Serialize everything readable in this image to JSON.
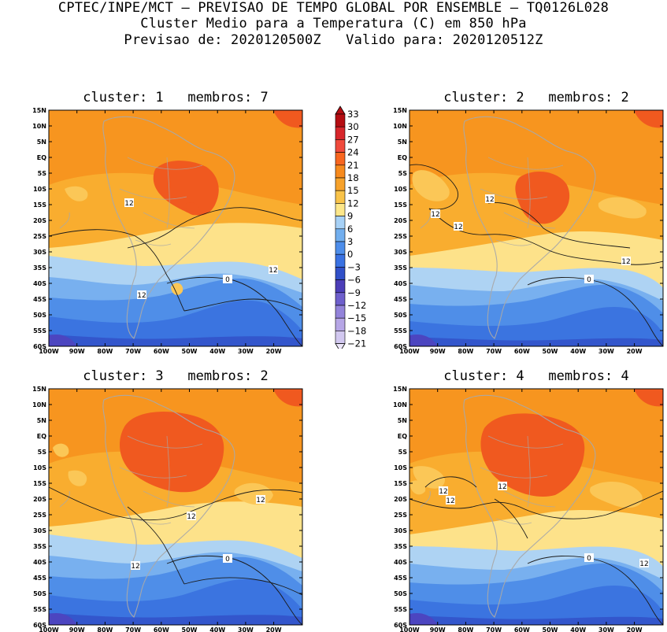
{
  "header": {
    "line1": "CPTEC/INPE/MCT – PREVISAO DE TEMPO GLOBAL POR ENSEMBLE – TQ0126L028",
    "line2": "Cluster Medio para a Temperatura (C) em 850 hPa",
    "line3": "Previsao de: 2020120500Z   Valido para: 2020120512Z"
  },
  "panels": [
    {
      "title": "cluster: 1   membros: 7",
      "labels": [
        "12",
        "12",
        "12",
        "0"
      ]
    },
    {
      "title": "cluster: 2   membros: 2",
      "labels": [
        "12",
        "12",
        "12",
        "12",
        "0"
      ]
    },
    {
      "title": "cluster: 3   membros: 2",
      "labels": [
        "12",
        "12",
        "12",
        "0"
      ]
    },
    {
      "title": "cluster: 4   membros: 4",
      "labels": [
        "12",
        "12",
        "12",
        "12",
        "0"
      ]
    }
  ],
  "axes": {
    "lat_labels": [
      "15N",
      "10N",
      "5N",
      "EQ",
      "5S",
      "10S",
      "15S",
      "20S",
      "25S",
      "30S",
      "35S",
      "40S",
      "45S",
      "50S",
      "55S",
      "60S"
    ],
    "lon_labels": [
      "100W",
      "90W",
      "80W",
      "70W",
      "60W",
      "50W",
      "40W",
      "30W",
      "20W"
    ]
  },
  "colorbar": {
    "levels": [
      "33",
      "30",
      "27",
      "24",
      "21",
      "18",
      "15",
      "12",
      "9",
      "6",
      "3",
      "0",
      "−3",
      "−6",
      "−9",
      "−12",
      "−15",
      "−18",
      "−21"
    ],
    "colors": [
      "#b50d12",
      "#d7262b",
      "#f04a3c",
      "#f8661f",
      "#f78a1d",
      "#f7a22b",
      "#f9c349",
      "#fde78a",
      "#a7d1f6",
      "#72afef",
      "#4e8eeb",
      "#3a72e3",
      "#3150c8",
      "#4c3eb8",
      "#6e5fcc",
      "#9383da",
      "#b6a6e6",
      "#d2c8f0"
    ]
  },
  "palette": {
    "t21": "#f0591f",
    "t18": "#f7931f",
    "t15": "#f9ad2f",
    "t12": "#fbc757",
    "t9": "#fde28a",
    "t6": "#aed3f3",
    "t3": "#78b0ef",
    "t0": "#4f8ee8",
    "tm3": "#3b74e0",
    "tm6": "#3356cc",
    "tm9": "#4c45c0",
    "land": "#a9a9a9"
  }
}
